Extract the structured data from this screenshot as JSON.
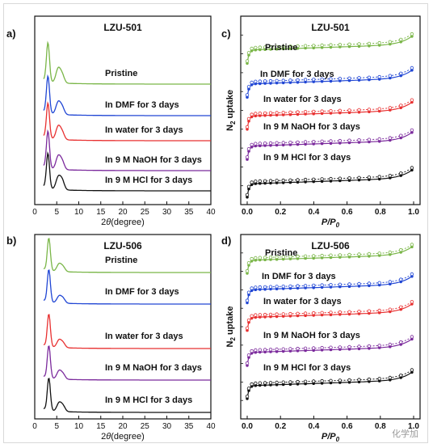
{
  "watermark": "化学加",
  "chart_data": [
    {
      "type": "line",
      "panel_label": "a)",
      "title": "LZU-501",
      "xlabel_prefix": "2",
      "xlabel_var": "θ",
      "xlabel_unit": "(degree)",
      "ylabel": "",
      "xlim": [
        0,
        40
      ],
      "xticks": [
        0,
        5,
        10,
        15,
        20,
        25,
        30,
        35,
        40
      ],
      "series": [
        {
          "name": "Pristine",
          "color": "#7ab648",
          "peaks": [
            [
              3.0,
              1.0
            ],
            [
              5.3,
              0.35
            ],
            [
              6.2,
              0.22
            ]
          ]
        },
        {
          "name": "In DMF for 3 days",
          "color": "#2046d4",
          "peaks": [
            [
              3.0,
              0.95
            ],
            [
              5.3,
              0.3
            ],
            [
              6.2,
              0.2
            ]
          ]
        },
        {
          "name": "In water for 3 days",
          "color": "#e83030",
          "peaks": [
            [
              3.0,
              0.9
            ],
            [
              5.3,
              0.32
            ],
            [
              6.2,
              0.2
            ]
          ]
        },
        {
          "name": "In 9 M NaOH for 3 days",
          "color": "#7b2a9c",
          "peaks": [
            [
              3.0,
              0.95
            ],
            [
              5.3,
              0.32
            ],
            [
              6.2,
              0.22
            ]
          ]
        },
        {
          "name": "In 9 M HCl for 3 days",
          "color": "#111111",
          "peaks": [
            [
              3.0,
              0.9
            ],
            [
              5.3,
              0.3
            ],
            [
              6.2,
              0.25
            ]
          ]
        }
      ]
    },
    {
      "type": "line",
      "panel_label": "b)",
      "title": "LZU-506",
      "xlabel_prefix": "2",
      "xlabel_var": "θ",
      "xlabel_unit": "(degree)",
      "ylabel": "",
      "xlim": [
        0,
        40
      ],
      "xticks": [
        0,
        5,
        10,
        15,
        20,
        25,
        30,
        35,
        40
      ],
      "series": [
        {
          "name": "Pristine",
          "color": "#7ab648",
          "peaks": [
            [
              3.2,
              1.0
            ],
            [
              5.5,
              0.22
            ],
            [
              6.4,
              0.15
            ]
          ]
        },
        {
          "name": "In DMF for 3 days",
          "color": "#2046d4",
          "peaks": [
            [
              3.2,
              1.0
            ],
            [
              5.5,
              0.2
            ],
            [
              6.4,
              0.15
            ]
          ]
        },
        {
          "name": "In water for 3 days",
          "color": "#e83030",
          "peaks": [
            [
              3.2,
              1.0
            ],
            [
              5.5,
              0.22
            ],
            [
              6.4,
              0.15
            ]
          ]
        },
        {
          "name": "In 9 M NaOH for 3 days",
          "color": "#7b2a9c",
          "peaks": [
            [
              3.2,
              1.0
            ],
            [
              5.5,
              0.24
            ],
            [
              6.4,
              0.16
            ]
          ]
        },
        {
          "name": "In 9 M HCl for 3 days",
          "color": "#111111",
          "peaks": [
            [
              3.2,
              1.0
            ],
            [
              5.5,
              0.25
            ],
            [
              6.4,
              0.18
            ]
          ]
        }
      ]
    },
    {
      "type": "scatter",
      "panel_label": "c)",
      "title": "LZU-501",
      "xlabel_main": "P/P",
      "xlabel_sub": "0",
      "ylabel_main": "N",
      "ylabel_sub": "2",
      "ylabel_rest": " uptake",
      "xlim": [
        0,
        1.0
      ],
      "xticks": [
        "0.0",
        "0.2",
        "0.4",
        "0.6",
        "0.8",
        "1.0"
      ],
      "series": [
        {
          "name": "Pristine",
          "color": "#7ab648",
          "level": 0.82
        },
        {
          "name": "In DMF for 3 days",
          "color": "#2046d4",
          "level": 0.64
        },
        {
          "name": "In water for 3 days",
          "color": "#e83030",
          "level": 0.47
        },
        {
          "name": "In 9 M NaOH for 3 days",
          "color": "#7b2a9c",
          "level": 0.31
        },
        {
          "name": "In 9 M HCl for 3 days",
          "color": "#111111",
          "level": 0.11
        }
      ]
    },
    {
      "type": "scatter",
      "panel_label": "d)",
      "title": "LZU-506",
      "xlabel_main": "P/P",
      "xlabel_sub": "0",
      "ylabel_main": "N",
      "ylabel_sub": "2",
      "ylabel_rest": " uptake",
      "xlim": [
        0,
        1.0
      ],
      "xticks": [
        "0.0",
        "0.2",
        "0.4",
        "0.6",
        "0.8",
        "1.0"
      ],
      "series": [
        {
          "name": "Pristine",
          "color": "#7ab648",
          "level": 0.86
        },
        {
          "name": "In  DMF for 3 days",
          "color": "#2046d4",
          "level": 0.7
        },
        {
          "name": "In water for 3 days",
          "color": "#e83030",
          "level": 0.55
        },
        {
          "name": "In 9 M NaOH for 3 days",
          "color": "#7b2a9c",
          "level": 0.36
        },
        {
          "name": "In 9 M HCl for 3 days",
          "color": "#111111",
          "level": 0.18
        }
      ]
    }
  ]
}
